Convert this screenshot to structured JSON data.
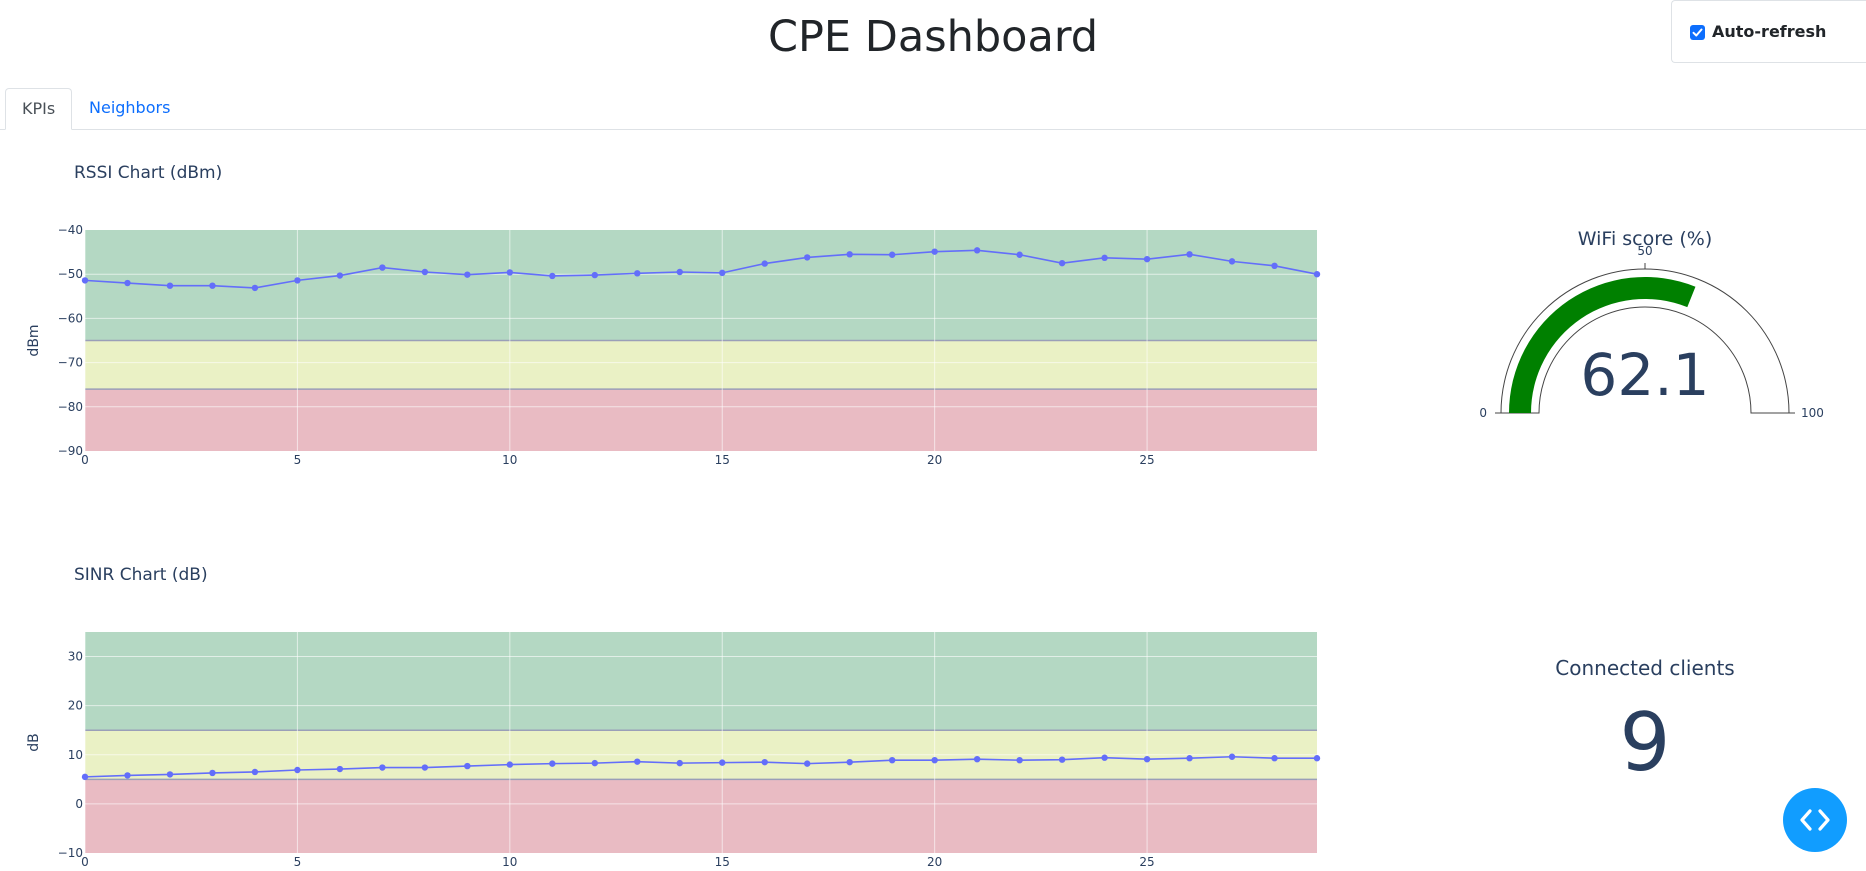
{
  "header": {
    "title": "CPE Dashboard"
  },
  "auto_refresh": {
    "label": "Auto-refresh",
    "checked": true
  },
  "tabs": [
    {
      "label": "KPIs",
      "active": true
    },
    {
      "label": "Neighbors",
      "active": false
    }
  ],
  "gauge": {
    "title": "WiFi score (%)",
    "value": 62.1,
    "display": "62.1",
    "min": 0,
    "max": 100,
    "tick_min": "0",
    "tick_mid": "50",
    "tick_max": "100",
    "bar_color": "#008000"
  },
  "clients": {
    "title": "Connected clients",
    "value": "9"
  },
  "icons": {
    "code": "code-icon",
    "check": "check-icon"
  },
  "colors": {
    "green_band": "#b4d8c3",
    "yellow_band": "#eaf1c5",
    "red_band": "#e9bbc3",
    "line": "#636efa",
    "tab_link": "#0d6efd",
    "fab": "#119dff"
  },
  "chart_data": [
    {
      "type": "line",
      "title": "RSSI Chart (dBm)",
      "xlabel": "",
      "ylabel": "dBm",
      "xlim": [
        0,
        29
      ],
      "ylim": [
        -90,
        -40
      ],
      "xticks": [
        0,
        5,
        10,
        15,
        20,
        25
      ],
      "yticks": [
        -90,
        -80,
        -70,
        -60,
        -50,
        -40
      ],
      "bands": [
        {
          "from": -65,
          "to": -40,
          "color": "#b4d8c3"
        },
        {
          "from": -76,
          "to": -65,
          "color": "#eaf1c5"
        },
        {
          "from": -90,
          "to": -76,
          "color": "#e9bbc3"
        }
      ],
      "x": [
        0,
        1,
        2,
        3,
        4,
        5,
        6,
        7,
        8,
        9,
        10,
        11,
        12,
        13,
        14,
        15,
        16,
        17,
        18,
        19,
        20,
        21,
        22,
        23,
        24,
        25,
        26,
        27,
        28,
        29
      ],
      "y": [
        -51.4,
        -52,
        -52.6,
        -52.6,
        -53.1,
        -51.4,
        -50.3,
        -48.5,
        -49.5,
        -50.1,
        -49.6,
        -50.4,
        -50.2,
        -49.8,
        -49.5,
        -49.7,
        -47.6,
        -46.2,
        -45.5,
        -45.6,
        -44.9,
        -44.6,
        -45.6,
        -47.5,
        -46.3,
        -46.6,
        -45.5,
        -47.1,
        -48.1,
        -50
      ]
    },
    {
      "type": "line",
      "title": "SINR Chart (dB)",
      "xlabel": "",
      "ylabel": "dB",
      "xlim": [
        0,
        29
      ],
      "ylim": [
        -10,
        35
      ],
      "xticks": [
        0,
        5,
        10,
        15,
        20,
        25
      ],
      "yticks": [
        -10,
        0,
        10,
        20,
        30
      ],
      "bands": [
        {
          "from": 15,
          "to": 35,
          "color": "#b4d8c3"
        },
        {
          "from": 5,
          "to": 15,
          "color": "#eaf1c5"
        },
        {
          "from": -10,
          "to": 5,
          "color": "#e9bbc3"
        }
      ],
      "x": [
        0,
        1,
        2,
        3,
        4,
        5,
        6,
        7,
        8,
        9,
        10,
        11,
        12,
        13,
        14,
        15,
        16,
        17,
        18,
        19,
        20,
        21,
        22,
        23,
        24,
        25,
        26,
        27,
        28,
        29
      ],
      "y": [
        5.5,
        5.8,
        6,
        6.3,
        6.5,
        6.9,
        7.1,
        7.4,
        7.4,
        7.7,
        8,
        8.2,
        8.3,
        8.6,
        8.3,
        8.4,
        8.5,
        8.2,
        8.5,
        8.9,
        8.9,
        9.1,
        8.9,
        9,
        9.4,
        9.1,
        9.3,
        9.6,
        9.3,
        9.3
      ]
    }
  ]
}
